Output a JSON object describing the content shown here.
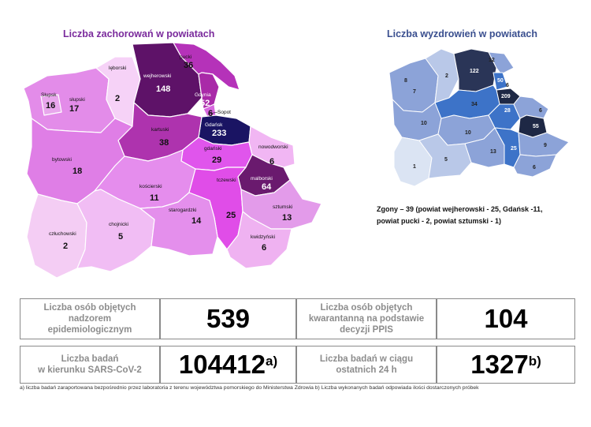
{
  "left_map": {
    "title": "Liczba zachorowań w powiatach",
    "regions": [
      {
        "id": "slupsk-city",
        "name": "Słupsk",
        "value": "16",
        "color": "#e8a6ec"
      },
      {
        "id": "slupski",
        "name": "słupski",
        "value": "17",
        "color": "#e38ce9"
      },
      {
        "id": "leborski",
        "name": "lęborski",
        "value": "2",
        "color": "#f6d2f7"
      },
      {
        "id": "wejherowski",
        "name": "wejherowski",
        "value": "148",
        "color": "#5e1268"
      },
      {
        "id": "pucki",
        "name": "pucki",
        "value": "36",
        "color": "#b532b9"
      },
      {
        "id": "gdynia",
        "name": "Gdynia",
        "value": "52",
        "color": "#a92aa8"
      },
      {
        "id": "sopot",
        "name": "Sopot",
        "value": "6",
        "color": "#d768de"
      },
      {
        "id": "gdansk",
        "name": "Gdańsk",
        "value": "233",
        "color": "#1a1463"
      },
      {
        "id": "bytowski",
        "name": "bytowski",
        "value": "18",
        "color": "#df7ee6"
      },
      {
        "id": "kartuski",
        "name": "kartuski",
        "value": "38",
        "color": "#ae33ae"
      },
      {
        "id": "gdanski",
        "name": "gdański",
        "value": "29",
        "color": "#e055ec"
      },
      {
        "id": "nowodworski",
        "name": "nowodworski",
        "value": "6",
        "color": "#f1b6f3"
      },
      {
        "id": "koscierski",
        "name": "kościerski",
        "value": "11",
        "color": "#e58ded"
      },
      {
        "id": "malborski",
        "name": "malborski",
        "value": "64",
        "color": "#6a1a6e"
      },
      {
        "id": "tczewski",
        "name": "tczewski",
        "value": "25",
        "color": "#e04de8"
      },
      {
        "id": "czluchowski",
        "name": "człuchowski",
        "value": "2",
        "color": "#f4cdf4"
      },
      {
        "id": "chojnicki",
        "name": "chojnicki",
        "value": "5",
        "color": "#f1bdf4"
      },
      {
        "id": "starogardzki",
        "name": "starogardzki",
        "value": "14",
        "color": "#e48fec"
      },
      {
        "id": "sztumski",
        "name": "sztumski",
        "value": "13",
        "color": "#e39bea"
      },
      {
        "id": "kwidzynski",
        "name": "kwidzyński",
        "value": "6",
        "color": "#efb2f1"
      }
    ]
  },
  "right_map": {
    "title": "Liczba wyzdrowień w powiatach",
    "values": [
      "8",
      "2",
      "122",
      "12",
      "7",
      "50",
      "6",
      "209",
      "34",
      "28",
      "6",
      "10",
      "55",
      "10",
      "13",
      "25",
      "9",
      "1",
      "5",
      "6"
    ],
    "deaths_note": [
      "Zgony – 39 (powiat wejherowski - 25, Gdańsk -11,",
      "powiat pucki - 2, powiat sztumski - 1)"
    ]
  },
  "stats": {
    "monitored_label": [
      "Liczba osób objętych",
      "nadzorem",
      "epidemiologicznym"
    ],
    "monitored_value": "539",
    "quarantine_label": [
      "Liczba osób objętych",
      "kwarantanną na podstawie",
      "decyzji PPIS"
    ],
    "quarantine_value": "104",
    "tests_label": [
      "Liczba badań",
      "w kierunku SARS-CoV-2"
    ],
    "tests_value": "104412",
    "tests_suffix": "a)",
    "tests24_label": [
      "Liczba badań w ciągu",
      "ostatnich 24 h"
    ],
    "tests24_value": "1327",
    "tests24_suffix": "b)"
  },
  "footnote": "a) liczba badań zaraportowana bezpośrednio przez laboratoria z terenu województwa pomorskiego do Ministerstwa Zdrowia b) Liczba wykonanych badań odpowiada ilości dostarczonych próbek"
}
